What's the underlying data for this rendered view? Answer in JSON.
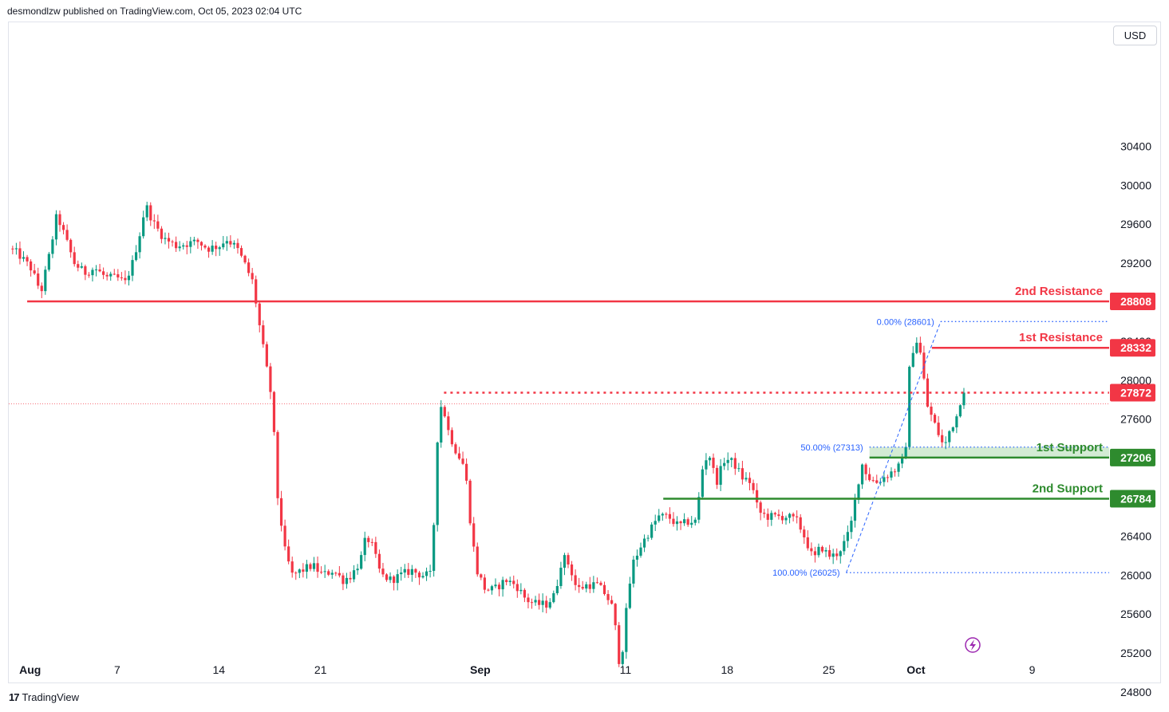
{
  "header": {
    "published_text": "desmondlzw published on TradingView.com, Oct 05, 2023 02:04 UTC"
  },
  "toolbar": {
    "currency_label": "USD"
  },
  "footer": {
    "brand_mark": "17",
    "brand_name": "TradingView"
  },
  "colors": {
    "up": "#089981",
    "down": "#f23645",
    "resistance": "#f23645",
    "support": "#2e8b2e",
    "fib": "#2962ff",
    "support_zone": "#c8e6c9"
  },
  "chart_data": {
    "type": "candlestick",
    "title": "",
    "xlabel": "",
    "ylabel": "",
    "currency": "USD",
    "ylim": [
      24550,
      30780
    ],
    "y_ticks": [
      24800,
      25200,
      25600,
      26000,
      26400,
      26800,
      27200,
      27600,
      28000,
      28400,
      28800,
      29200,
      29600,
      30000,
      30400
    ],
    "x_ticks": [
      {
        "label": "Aug",
        "day": 0
      },
      {
        "label": "7",
        "day": 6
      },
      {
        "label": "14",
        "day": 13
      },
      {
        "label": "21",
        "day": 20
      },
      {
        "label": "Sep",
        "day": 31
      },
      {
        "label": "11",
        "day": 41
      },
      {
        "label": "18",
        "day": 48
      },
      {
        "label": "25",
        "day": 55
      },
      {
        "label": "Oct",
        "day": 61
      },
      {
        "label": "9",
        "day": 69
      }
    ],
    "last_price": 27872,
    "levels": [
      {
        "name": "2nd Resistance",
        "value": 28808,
        "kind": "resistance",
        "from_day": -0.2
      },
      {
        "name": "1st Resistance",
        "value": 28332,
        "kind": "resistance",
        "from_day": 62.1
      },
      {
        "name": "1st Support",
        "value": 27206,
        "kind": "support",
        "from_day": 57.8
      },
      {
        "name": "2nd Support",
        "value": 26784,
        "kind": "support",
        "from_day": 43.6
      }
    ],
    "dotted_level": {
      "value": 27872,
      "from_day": 28.5
    },
    "support_zone": {
      "from": 27206,
      "to": 27313,
      "from_day": 57.8
    },
    "fib_levels": [
      {
        "label": "0.00% (28601)",
        "value": 28601,
        "from_day": 62.7
      },
      {
        "label": "50.00% (27313)",
        "value": 27313,
        "from_day": 57.8
      },
      {
        "label": "100.00% (26025)",
        "value": 26025,
        "from_day": 56.2
      }
    ],
    "fib_trend": {
      "from_day": 56.2,
      "from_value": 26025,
      "to_day": 62.7,
      "to_value": 28601
    },
    "annotations": [
      "2nd Resistance",
      "1st Resistance",
      "1st Support",
      "2nd Support"
    ],
    "anchors": [
      [
        -1.2,
        29350
      ],
      [
        -0.6,
        29300
      ],
      [
        0.3,
        29150
      ],
      [
        1.0,
        28900
      ],
      [
        1.6,
        29300
      ],
      [
        2.1,
        29700
      ],
      [
        2.7,
        29450
      ],
      [
        3.3,
        29200
      ],
      [
        4.0,
        29100
      ],
      [
        4.7,
        29150
      ],
      [
        5.5,
        29050
      ],
      [
        6.2,
        29050
      ],
      [
        6.8,
        29000
      ],
      [
        7.3,
        29200
      ],
      [
        7.8,
        29500
      ],
      [
        8.2,
        29800
      ],
      [
        8.8,
        29600
      ],
      [
        9.5,
        29450
      ],
      [
        10.3,
        29380
      ],
      [
        11.0,
        29400
      ],
      [
        11.8,
        29420
      ],
      [
        12.5,
        29350
      ],
      [
        13.3,
        29380
      ],
      [
        13.8,
        29450
      ],
      [
        14.5,
        29350
      ],
      [
        15.0,
        29200
      ],
      [
        15.6,
        29000
      ],
      [
        16.0,
        28600
      ],
      [
        16.5,
        28150
      ],
      [
        16.9,
        27800
      ],
      [
        17.3,
        26800
      ],
      [
        17.8,
        26250
      ],
      [
        18.3,
        26000
      ],
      [
        19.0,
        26050
      ],
      [
        19.7,
        26100
      ],
      [
        20.4,
        26000
      ],
      [
        21.1,
        26050
      ],
      [
        21.8,
        25950
      ],
      [
        22.4,
        26000
      ],
      [
        23.0,
        26150
      ],
      [
        23.4,
        26400
      ],
      [
        23.8,
        26300
      ],
      [
        24.4,
        26000
      ],
      [
        25.1,
        25950
      ],
      [
        25.8,
        26000
      ],
      [
        26.5,
        26050
      ],
      [
        27.2,
        26000
      ],
      [
        27.9,
        26000
      ],
      [
        28.3,
        27400
      ],
      [
        28.6,
        27800
      ],
      [
        29.0,
        27500
      ],
      [
        29.5,
        27300
      ],
      [
        30.2,
        27100
      ],
      [
        30.6,
        26500
      ],
      [
        31.0,
        26050
      ],
      [
        31.6,
        25850
      ],
      [
        32.2,
        25850
      ],
      [
        33.0,
        25950
      ],
      [
        33.7,
        25900
      ],
      [
        34.4,
        25750
      ],
      [
        35.1,
        25700
      ],
      [
        35.8,
        25700
      ],
      [
        36.4,
        25800
      ],
      [
        36.9,
        26200
      ],
      [
        37.4,
        26100
      ],
      [
        37.9,
        25850
      ],
      [
        38.6,
        25900
      ],
      [
        39.3,
        25900
      ],
      [
        39.9,
        25800
      ],
      [
        40.4,
        25650
      ],
      [
        40.9,
        25000
      ],
      [
        41.2,
        25500
      ],
      [
        41.7,
        26100
      ],
      [
        42.3,
        26300
      ],
      [
        42.9,
        26450
      ],
      [
        43.5,
        26600
      ],
      [
        44.2,
        26600
      ],
      [
        44.9,
        26500
      ],
      [
        45.6,
        26550
      ],
      [
        46.1,
        26550
      ],
      [
        46.6,
        27150
      ],
      [
        47.0,
        27250
      ],
      [
        47.5,
        26950
      ],
      [
        48.1,
        27200
      ],
      [
        48.7,
        27150
      ],
      [
        49.3,
        27000
      ],
      [
        49.9,
        26950
      ],
      [
        50.4,
        26650
      ],
      [
        51.0,
        26600
      ],
      [
        51.7,
        26600
      ],
      [
        52.4,
        26600
      ],
      [
        53.1,
        26550
      ],
      [
        53.7,
        26350
      ],
      [
        54.2,
        26150
      ],
      [
        54.7,
        26300
      ],
      [
        55.2,
        26200
      ],
      [
        55.7,
        26200
      ],
      [
        56.2,
        26300
      ],
      [
        56.7,
        26450
      ],
      [
        57.1,
        26800
      ],
      [
        57.5,
        27150
      ],
      [
        58.0,
        27000
      ],
      [
        58.5,
        26950
      ],
      [
        59.0,
        27000
      ],
      [
        59.5,
        27050
      ],
      [
        60.0,
        27100
      ],
      [
        60.5,
        27200
      ],
      [
        60.8,
        28100
      ],
      [
        61.2,
        28450
      ],
      [
        61.6,
        28250
      ],
      [
        62.0,
        27750
      ],
      [
        62.4,
        27600
      ],
      [
        62.8,
        27450
      ],
      [
        63.2,
        27300
      ],
      [
        63.6,
        27500
      ],
      [
        64.0,
        27600
      ],
      [
        64.4,
        27850
      ]
    ]
  }
}
